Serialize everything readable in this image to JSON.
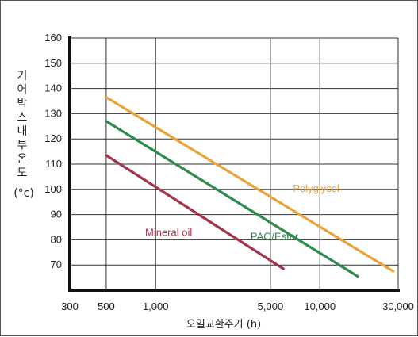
{
  "chart_data": {
    "type": "line",
    "ylabel_chars": [
      "기",
      "어",
      "박",
      "스",
      "내",
      "부",
      "온",
      "도"
    ],
    "ylabel_unit": "(°c)",
    "xlabel": "오일교환주기 (h)",
    "x_scale": "log",
    "xlim": [
      300,
      30000
    ],
    "ylim": [
      60,
      160
    ],
    "x_ticks": [
      {
        "value": 300,
        "label": "300"
      },
      {
        "value": 500,
        "label": "500"
      },
      {
        "value": 1000,
        "label": "1,000"
      },
      {
        "value": 5000,
        "label": "5,000"
      },
      {
        "value": 10000,
        "label": "10,000"
      },
      {
        "value": 30000,
        "label": "30,000"
      }
    ],
    "x_gridlines": [
      300,
      500,
      1000,
      5000,
      10000,
      30000
    ],
    "y_ticks": [
      70,
      80,
      90,
      100,
      110,
      120,
      130,
      140,
      150,
      160
    ],
    "grid": true,
    "series": [
      {
        "name": "Polyglycol",
        "color": "#e8a33c",
        "points": [
          [
            500,
            136.5
          ],
          [
            28000,
            67.5
          ]
        ]
      },
      {
        "name": "PAO/Ester",
        "color": "#2f8a4e",
        "points": [
          [
            500,
            127
          ],
          [
            17000,
            65.5
          ]
        ]
      },
      {
        "name": "Mineral oil",
        "color": "#a3344a",
        "points": [
          [
            500,
            113.5
          ],
          [
            6000,
            68.5
          ]
        ]
      }
    ],
    "series_labels": [
      {
        "series": "Polyglycol",
        "at": [
          9500,
          99
        ]
      },
      {
        "series": "PAO/Ester",
        "at": [
          5300,
          80
        ]
      },
      {
        "series": "Mineral oil",
        "at": [
          1200,
          81.5
        ]
      }
    ]
  }
}
